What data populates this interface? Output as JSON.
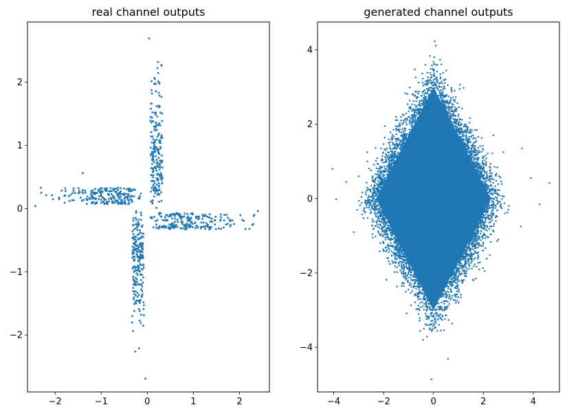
{
  "colors": {
    "marker": "#1f77b4",
    "axes": "#000000",
    "background": "#ffffff"
  },
  "chart_data": [
    {
      "type": "scatter",
      "title": "real channel outputs",
      "xlabel": "",
      "ylabel": "",
      "xlim": [
        -2.6,
        2.65
      ],
      "ylim": [
        -2.9,
        2.95
      ],
      "xticks": [
        -2,
        -1,
        0,
        1,
        2
      ],
      "xtick_labels": [
        "−2",
        "−1",
        "0",
        "1",
        "2"
      ],
      "yticks": [
        -2,
        -1,
        0,
        1,
        2
      ],
      "ytick_labels": [
        "−2",
        "−1",
        "0",
        "1",
        "2"
      ],
      "grid": false,
      "marker": "square",
      "points": [
        [
          0.04,
          2.69
        ],
        [
          0.31,
          2.26
        ],
        [
          0.22,
          2.22
        ],
        [
          -2.43,
          0.04
        ],
        [
          2.4,
          -0.04
        ],
        [
          -0.18,
          -2.21
        ],
        [
          -0.26,
          -2.26
        ],
        [
          -0.04,
          -2.69
        ],
        [
          2.28,
          -0.26
        ],
        [
          -2.3,
          0.25
        ],
        [
          -1.4,
          0.56
        ],
        [
          0.1,
          1.82
        ],
        [
          0.25,
          1.83
        ],
        [
          0.2,
          1.62
        ],
        [
          0.12,
          1.38
        ],
        [
          0.3,
          1.12
        ],
        [
          0.16,
          0.9
        ],
        [
          0.24,
          0.66
        ],
        [
          0.12,
          0.44
        ],
        [
          0.3,
          0.26
        ],
        [
          -0.14,
          -1.81
        ],
        [
          -0.28,
          -1.62
        ],
        [
          -0.12,
          -1.4
        ],
        [
          -0.3,
          -1.12
        ],
        [
          -0.16,
          -0.9
        ],
        [
          -0.24,
          -0.66
        ],
        [
          -0.12,
          -0.44
        ],
        [
          -0.3,
          -0.26
        ],
        [
          -1.8,
          0.2
        ],
        [
          -1.6,
          0.32
        ],
        [
          -1.2,
          0.1
        ],
        [
          -0.9,
          0.28
        ],
        [
          -0.6,
          0.16
        ],
        [
          -0.4,
          0.3
        ],
        [
          1.8,
          -0.2
        ],
        [
          1.6,
          -0.32
        ],
        [
          1.2,
          -0.1
        ],
        [
          0.9,
          -0.28
        ],
        [
          0.6,
          -0.16
        ],
        [
          0.4,
          -0.3
        ]
      ],
      "cloud": {
        "shape": "cross",
        "arm_half_width": 0.13,
        "arm_offset": 0.2,
        "extra_points": 820
      }
    },
    {
      "type": "scatter",
      "title": "generated channel outputs",
      "xlabel": "",
      "ylabel": "",
      "xlim": [
        -4.65,
        5.05
      ],
      "ylim": [
        -5.2,
        4.75
      ],
      "xticks": [
        -4,
        -2,
        0,
        2,
        4
      ],
      "xtick_labels": [
        "−4",
        "−2",
        "0",
        "2",
        "4"
      ],
      "yticks": [
        -4,
        -2,
        0,
        2,
        4
      ],
      "ytick_labels": [
        "−4",
        "−2",
        "0",
        "2",
        "4"
      ],
      "grid": false,
      "marker": "circle",
      "diamond_core": {
        "x_half": 2.3,
        "y_half": 3.0,
        "center": [
          0,
          0
        ]
      },
      "points": [
        [
          0.05,
          4.23
        ],
        [
          -0.08,
          -4.86
        ],
        [
          0.58,
          -4.31
        ],
        [
          4.65,
          0.42
        ],
        [
          -4.05,
          0.8
        ],
        [
          4.25,
          -0.15
        ],
        [
          3.55,
          1.35
        ],
        [
          -3.9,
          -0.02
        ],
        [
          -0.6,
          3.12
        ],
        [
          1.05,
          2.95
        ],
        [
          -0.42,
          -3.8
        ],
        [
          0.3,
          -3.55
        ],
        [
          2.8,
          1.25
        ],
        [
          -2.65,
          1.0
        ],
        [
          -3.2,
          -0.9
        ],
        [
          3.5,
          -0.75
        ],
        [
          -1.5,
          2.2
        ],
        [
          1.6,
          -2.2
        ],
        [
          2.05,
          -1.95
        ],
        [
          -1.95,
          1.95
        ],
        [
          -0.8,
          2.62
        ],
        [
          0.9,
          -2.8
        ],
        [
          -1.2,
          -2.1
        ],
        [
          1.3,
          2.0
        ],
        [
          -3.5,
          0.45
        ],
        [
          3.9,
          0.55
        ],
        [
          -2.0,
          -1.2
        ],
        [
          2.4,
          1.7
        ],
        [
          -0.2,
          -3.2
        ],
        [
          0.15,
          3.6
        ],
        [
          -3.0,
          0.6
        ],
        [
          3.0,
          -0.3
        ],
        [
          -2.4,
          -0.8
        ],
        [
          2.6,
          -1.1
        ]
      ],
      "cloud": {
        "shape": "diamond",
        "extra_points": 3000
      }
    }
  ]
}
